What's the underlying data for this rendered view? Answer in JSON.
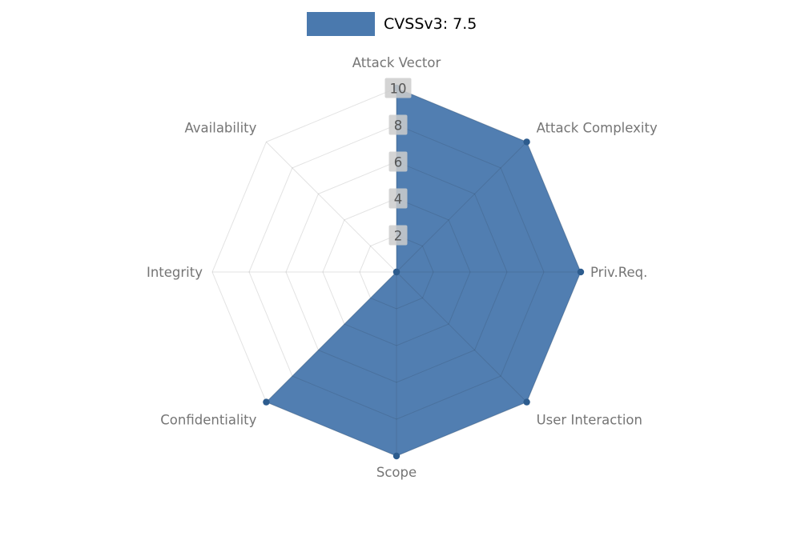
{
  "chart_data": {
    "type": "radar",
    "title": "",
    "legend_label": "CVSSv3: 7.5",
    "legend_position": "top-center",
    "categories": [
      "Attack Vector",
      "Attack Complexity",
      "Priv.Req.",
      "User Interaction",
      "Scope",
      "Confidentiality",
      "Integrity",
      "Availability"
    ],
    "series": [
      {
        "name": "CVSSv3: 7.5",
        "color": "#4a79ae",
        "values": [
          10,
          10,
          10,
          10,
          10,
          10,
          0,
          0
        ]
      }
    ],
    "ticks": [
      2,
      4,
      6,
      8,
      10
    ],
    "ylim": [
      0,
      10
    ],
    "grid": "on",
    "colors": {
      "series_fill": "#4a79ae",
      "vertex_dot": "#2d5c8e",
      "axis_label": "#757575",
      "tick_text": "#555555",
      "tick_box": "#cccccc",
      "legend_text": "#000000",
      "background": "#ffffff"
    }
  }
}
